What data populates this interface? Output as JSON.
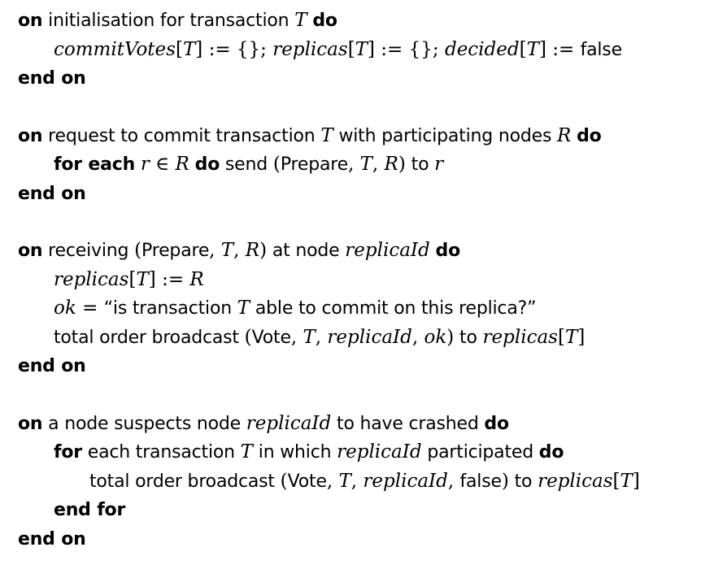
{
  "blocks": [
    {
      "lines": [
        {
          "indent": 0,
          "parts": [
            {
              "k": "kw",
              "v": "on"
            },
            {
              "k": "t",
              "v": " initialisation for transaction "
            },
            {
              "k": "m",
              "v": "T"
            },
            {
              "k": "t",
              "v": " "
            },
            {
              "k": "kw",
              "v": "do"
            }
          ]
        },
        {
          "indent": 1,
          "parts": [
            {
              "k": "m",
              "v": "commitVotes"
            },
            {
              "k": "mu",
              "v": "["
            },
            {
              "k": "m",
              "v": "T"
            },
            {
              "k": "mu",
              "v": "] := {}; "
            },
            {
              "k": "m",
              "v": "replicas"
            },
            {
              "k": "mu",
              "v": "["
            },
            {
              "k": "m",
              "v": "T"
            },
            {
              "k": "mu",
              "v": "] := {}; "
            },
            {
              "k": "m",
              "v": "decided"
            },
            {
              "k": "mu",
              "v": "["
            },
            {
              "k": "m",
              "v": "T"
            },
            {
              "k": "mu",
              "v": "] := "
            },
            {
              "k": "t",
              "v": "false"
            }
          ]
        },
        {
          "indent": 0,
          "parts": [
            {
              "k": "kw",
              "v": "end on"
            }
          ]
        }
      ]
    },
    {
      "lines": [
        {
          "indent": 0,
          "parts": [
            {
              "k": "kw",
              "v": "on"
            },
            {
              "k": "t",
              "v": " request to commit transaction "
            },
            {
              "k": "m",
              "v": "T"
            },
            {
              "k": "t",
              "v": " with participating nodes "
            },
            {
              "k": "m",
              "v": "R"
            },
            {
              "k": "t",
              "v": " "
            },
            {
              "k": "kw",
              "v": "do"
            }
          ]
        },
        {
          "indent": 1,
          "parts": [
            {
              "k": "kw",
              "v": "for each"
            },
            {
              "k": "t",
              "v": " "
            },
            {
              "k": "m",
              "v": "r"
            },
            {
              "k": "mu",
              "v": " ∈ "
            },
            {
              "k": "m",
              "v": "R"
            },
            {
              "k": "t",
              "v": " "
            },
            {
              "k": "kw",
              "v": "do"
            },
            {
              "k": "t",
              "v": " send "
            },
            {
              "k": "mu",
              "v": "("
            },
            {
              "k": "t",
              "v": "Prepare"
            },
            {
              "k": "mu",
              "v": ", "
            },
            {
              "k": "m",
              "v": "T"
            },
            {
              "k": "mu",
              "v": ", "
            },
            {
              "k": "m",
              "v": "R"
            },
            {
              "k": "mu",
              "v": ")"
            },
            {
              "k": "t",
              "v": " to "
            },
            {
              "k": "m",
              "v": "r"
            }
          ]
        },
        {
          "indent": 0,
          "parts": [
            {
              "k": "kw",
              "v": "end on"
            }
          ]
        }
      ]
    },
    {
      "lines": [
        {
          "indent": 0,
          "parts": [
            {
              "k": "kw",
              "v": "on"
            },
            {
              "k": "t",
              "v": " receiving "
            },
            {
              "k": "mu",
              "v": "("
            },
            {
              "k": "t",
              "v": "Prepare"
            },
            {
              "k": "mu",
              "v": ", "
            },
            {
              "k": "m",
              "v": "T"
            },
            {
              "k": "mu",
              "v": ", "
            },
            {
              "k": "m",
              "v": "R"
            },
            {
              "k": "mu",
              "v": ")"
            },
            {
              "k": "t",
              "v": " at node "
            },
            {
              "k": "m",
              "v": "replicaId"
            },
            {
              "k": "t",
              "v": " "
            },
            {
              "k": "kw",
              "v": "do"
            }
          ]
        },
        {
          "indent": 1,
          "parts": [
            {
              "k": "m",
              "v": "replicas"
            },
            {
              "k": "mu",
              "v": "["
            },
            {
              "k": "m",
              "v": "T"
            },
            {
              "k": "mu",
              "v": "] := "
            },
            {
              "k": "m",
              "v": "R"
            }
          ]
        },
        {
          "indent": 1,
          "parts": [
            {
              "k": "m",
              "v": "ok"
            },
            {
              "k": "mu",
              "v": " = "
            },
            {
              "k": "t",
              "v": "“is transaction "
            },
            {
              "k": "m",
              "v": "T"
            },
            {
              "k": "t",
              "v": " able to commit on this replica?”"
            }
          ]
        },
        {
          "indent": 1,
          "parts": [
            {
              "k": "t",
              "v": "total order broadcast "
            },
            {
              "k": "mu",
              "v": "("
            },
            {
              "k": "t",
              "v": "Vote"
            },
            {
              "k": "mu",
              "v": ", "
            },
            {
              "k": "m",
              "v": "T"
            },
            {
              "k": "mu",
              "v": ", "
            },
            {
              "k": "m",
              "v": "replicaId"
            },
            {
              "k": "mu",
              "v": ", "
            },
            {
              "k": "m",
              "v": "ok"
            },
            {
              "k": "mu",
              "v": ")"
            },
            {
              "k": "t",
              "v": " to "
            },
            {
              "k": "m",
              "v": "replicas"
            },
            {
              "k": "mu",
              "v": "["
            },
            {
              "k": "m",
              "v": "T"
            },
            {
              "k": "mu",
              "v": "]"
            }
          ]
        },
        {
          "indent": 0,
          "parts": [
            {
              "k": "kw",
              "v": "end on"
            }
          ]
        }
      ]
    },
    {
      "lines": [
        {
          "indent": 0,
          "parts": [
            {
              "k": "kw",
              "v": "on"
            },
            {
              "k": "t",
              "v": " a node suspects node "
            },
            {
              "k": "m",
              "v": "replicaId"
            },
            {
              "k": "t",
              "v": " to have crashed "
            },
            {
              "k": "kw",
              "v": "do"
            }
          ]
        },
        {
          "indent": 1,
          "parts": [
            {
              "k": "kw",
              "v": "for"
            },
            {
              "k": "t",
              "v": " each transaction "
            },
            {
              "k": "m",
              "v": "T"
            },
            {
              "k": "t",
              "v": " in which "
            },
            {
              "k": "m",
              "v": "replicaId"
            },
            {
              "k": "t",
              "v": " participated "
            },
            {
              "k": "kw",
              "v": "do"
            }
          ]
        },
        {
          "indent": 2,
          "parts": [
            {
              "k": "t",
              "v": "total order broadcast "
            },
            {
              "k": "mu",
              "v": "("
            },
            {
              "k": "t",
              "v": "Vote"
            },
            {
              "k": "mu",
              "v": ", "
            },
            {
              "k": "m",
              "v": "T"
            },
            {
              "k": "mu",
              "v": ", "
            },
            {
              "k": "m",
              "v": "replicaId"
            },
            {
              "k": "mu",
              "v": ", "
            },
            {
              "k": "t",
              "v": "false"
            },
            {
              "k": "mu",
              "v": ")"
            },
            {
              "k": "t",
              "v": " to "
            },
            {
              "k": "m",
              "v": "replicas"
            },
            {
              "k": "mu",
              "v": "["
            },
            {
              "k": "m",
              "v": "T"
            },
            {
              "k": "mu",
              "v": "]"
            }
          ]
        },
        {
          "indent": 1,
          "parts": [
            {
              "k": "kw",
              "v": "end for"
            }
          ]
        },
        {
          "indent": 0,
          "parts": [
            {
              "k": "kw",
              "v": "end on"
            }
          ]
        }
      ]
    }
  ]
}
